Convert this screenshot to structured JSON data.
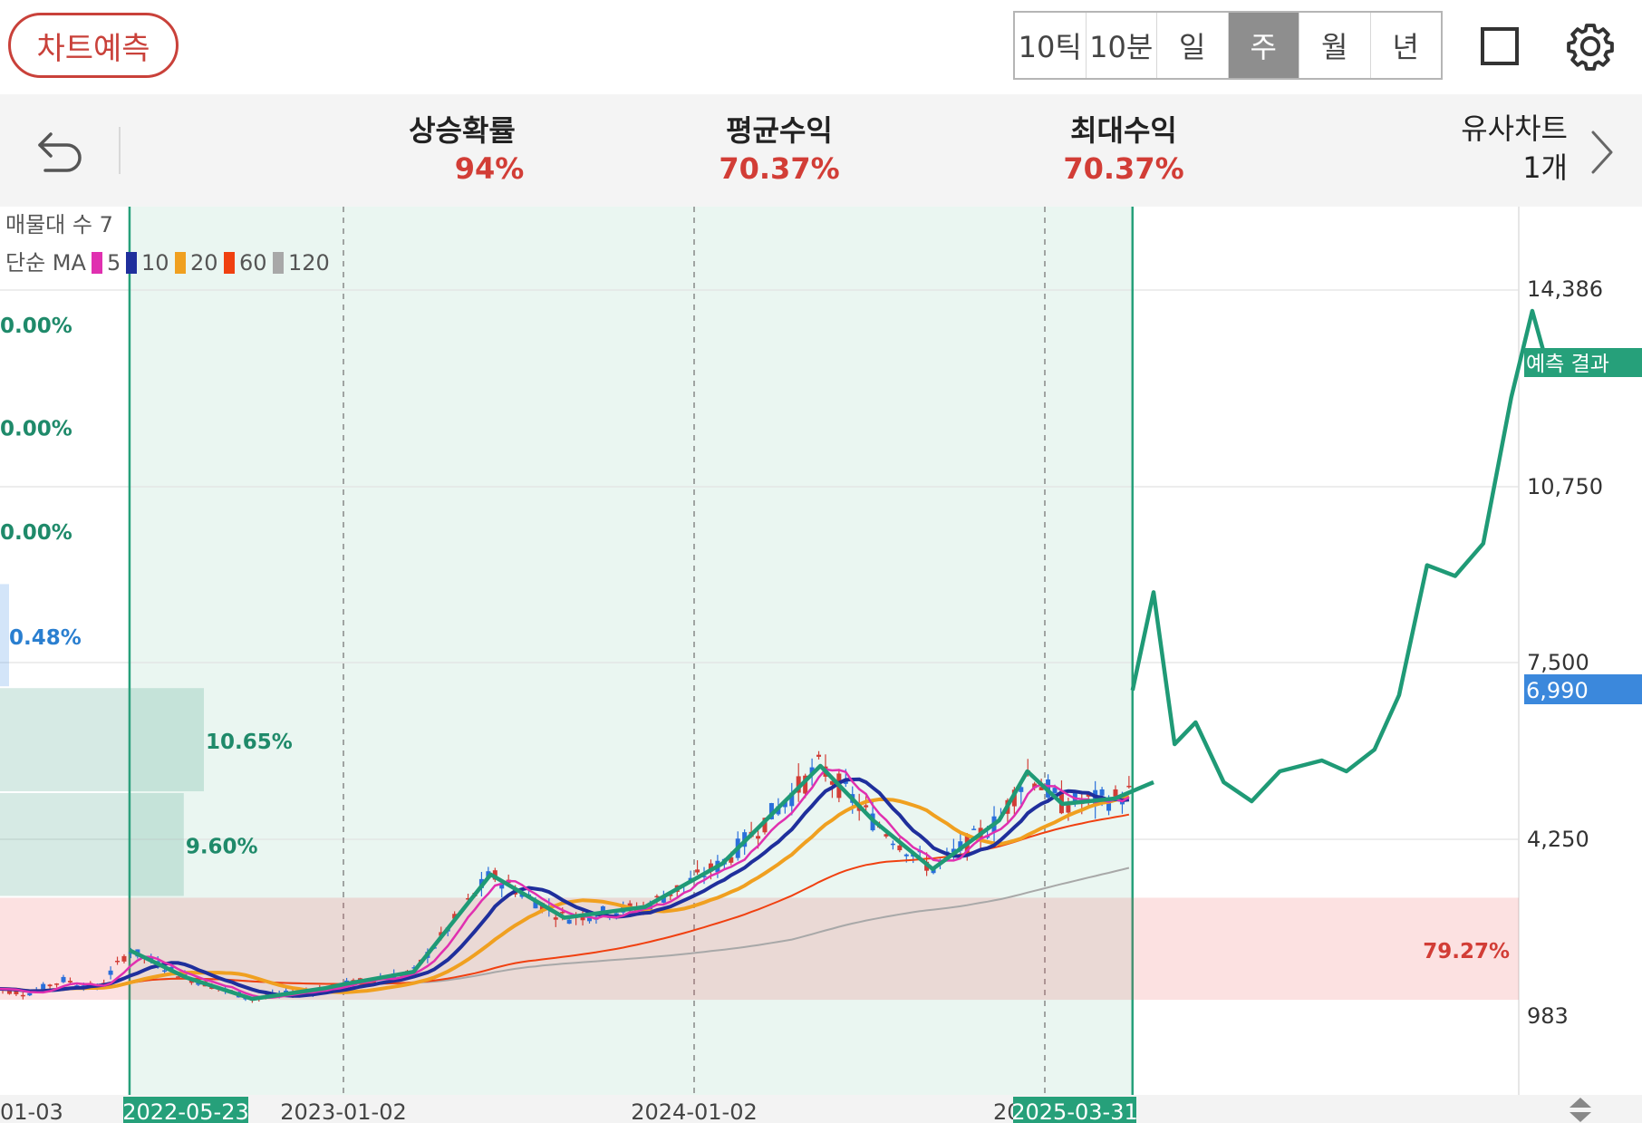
{
  "toolbar": {
    "predict_label": "차트예측",
    "periods": [
      "10틱",
      "10분",
      "일",
      "주",
      "월",
      "년"
    ],
    "active_period": "주"
  },
  "stats": {
    "rise_prob_label": "상승확률",
    "rise_prob_value": "94%",
    "avg_return_label": "평균수익",
    "avg_return_value": "70.37%",
    "max_return_label": "최대수익",
    "max_return_value": "70.37%",
    "similar_label": "유사차트",
    "similar_value": "1개"
  },
  "colors": {
    "up": "#d23d36",
    "down": "#2a6fdb",
    "pattern": "#1f9a76",
    "ma5": "#e030b0",
    "ma10": "#1f2f9c",
    "ma20": "#f0a020",
    "ma60": "#f04010",
    "ma120": "#a8a8a8",
    "current_price": "#3b88dc",
    "result_tag": "#1f9a76"
  },
  "chart_data": {
    "type": "line",
    "legend": {
      "volume_profile": "매물대 수 7",
      "ma_title": "단순 MA",
      "ma_periods": [
        "5",
        "10",
        "20",
        "60",
        "120"
      ]
    },
    "y_ticks": [
      "14,386",
      "10,750",
      "7,500",
      "4,250",
      "983"
    ],
    "y_tick_values": [
      14386,
      10750,
      7500,
      4250,
      983
    ],
    "x_ticks": [
      "01-03",
      "2023-01-02",
      "2024-01-02",
      "20"
    ],
    "range_start_label": "2022-05-23",
    "range_end_label": "2025-03-31",
    "current_price_label": "6,990",
    "current_price": 6990,
    "result_tag": "예측 결과",
    "volume_profile": [
      {
        "label": "0.00%",
        "low": 12800,
        "high": 14700
      },
      {
        "label": "0.00%",
        "low": 10900,
        "high": 12800
      },
      {
        "label": "0.00%",
        "low": 8950,
        "high": 10900
      },
      {
        "label": "0.48%",
        "low": 7030,
        "high": 8950
      },
      {
        "label": "10.65%",
        "low": 5100,
        "high": 7030
      },
      {
        "label": "9.60%",
        "low": 3170,
        "high": 5100
      },
      {
        "label": "79.27%",
        "low": 1250,
        "high": 3170
      }
    ],
    "series": [
      {
        "values": [
          [
            2022.39,
            2200
          ],
          [
            2022.55,
            1700
          ],
          [
            2022.74,
            1300
          ],
          [
            2022.95,
            1500
          ],
          [
            2023.0,
            1570
          ],
          [
            2023.2,
            1800
          ],
          [
            2023.42,
            3600
          ],
          [
            2023.63,
            2800
          ],
          [
            2023.86,
            3000
          ],
          [
            2024.08,
            3800
          ],
          [
            2024.36,
            5600
          ],
          [
            2024.51,
            4600
          ],
          [
            2024.68,
            3700
          ],
          [
            2024.87,
            4600
          ],
          [
            2024.95,
            5500
          ],
          [
            2025.05,
            4900
          ],
          [
            2025.2,
            5000
          ],
          [
            2025.31,
            5300
          ]
        ]
      },
      {
        "values": [
          [
            2025.25,
            6990
          ],
          [
            2025.31,
            8800
          ],
          [
            2025.37,
            6000
          ],
          [
            2025.43,
            6400
          ],
          [
            2025.51,
            5300
          ],
          [
            2025.59,
            4950
          ],
          [
            2025.67,
            5500
          ],
          [
            2025.79,
            5700
          ],
          [
            2025.86,
            5500
          ],
          [
            2025.94,
            5900
          ],
          [
            2026.01,
            6900
          ],
          [
            2026.09,
            9300
          ],
          [
            2026.17,
            9100
          ],
          [
            2026.25,
            9700
          ],
          [
            2026.33,
            12400
          ],
          [
            2026.39,
            14000
          ],
          [
            2026.42,
            13300
          ]
        ]
      }
    ]
  }
}
